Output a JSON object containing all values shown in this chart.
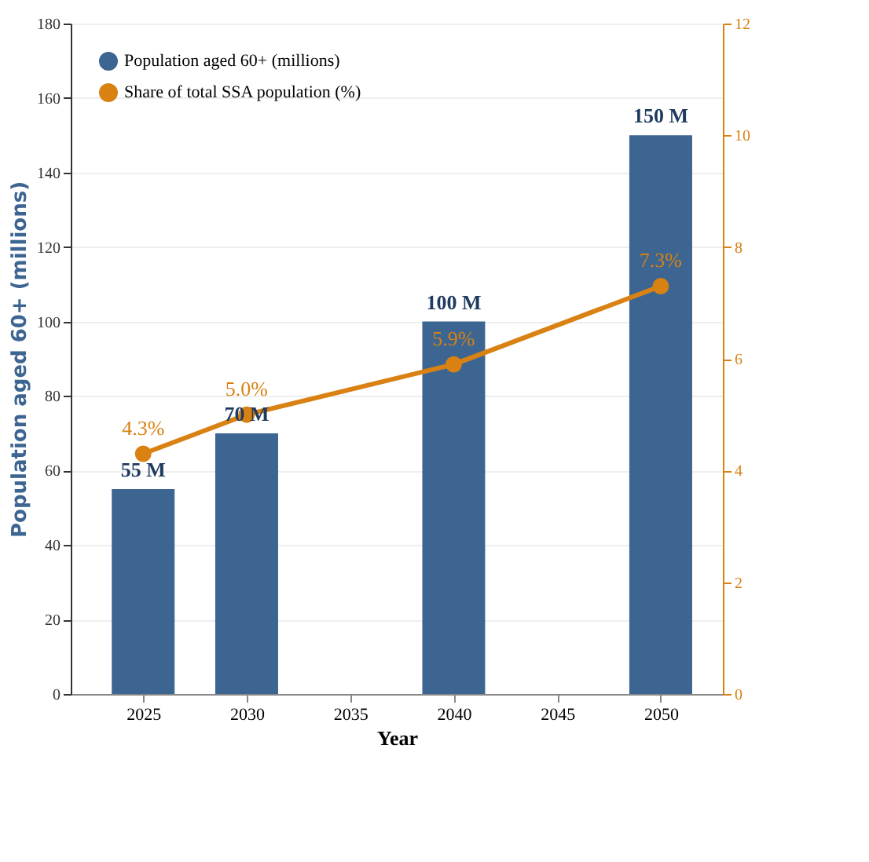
{
  "chart_data": {
    "type": "bar",
    "xlabel": "Year",
    "ylabel": "Population aged 60+ (millions)",
    "x": [
      2025,
      2030,
      2040,
      2050
    ],
    "series": [
      {
        "name": "Population aged 60+ (millions)",
        "color": "#3d6591",
        "values": [
          55,
          70,
          100,
          150
        ],
        "value_labels": [
          "55 M",
          "70 M",
          "100 M",
          "150 M"
        ]
      },
      {
        "name": "Share of total SSA population (%)",
        "type": "line",
        "axis": "y2",
        "color": "#d98213",
        "values": [
          4.3,
          5.0,
          5.9,
          7.3
        ],
        "value_labels": [
          "4.3%",
          "5.0%",
          "5.9%",
          "7.3%"
        ]
      }
    ],
    "xlim": [
      2021.5,
      2053
    ],
    "xticks": [
      2025,
      2030,
      2035,
      2040,
      2045,
      2050
    ],
    "ylim": [
      0,
      180
    ],
    "yticks": [
      0,
      20,
      40,
      60,
      80,
      100,
      120,
      140,
      160,
      180
    ],
    "y2lim": [
      0,
      12
    ],
    "y2ticks": [
      0,
      2,
      4,
      6,
      8,
      10,
      12
    ],
    "grid": "y",
    "legend": "top left",
    "marker": "circle",
    "line_style": "solid"
  }
}
